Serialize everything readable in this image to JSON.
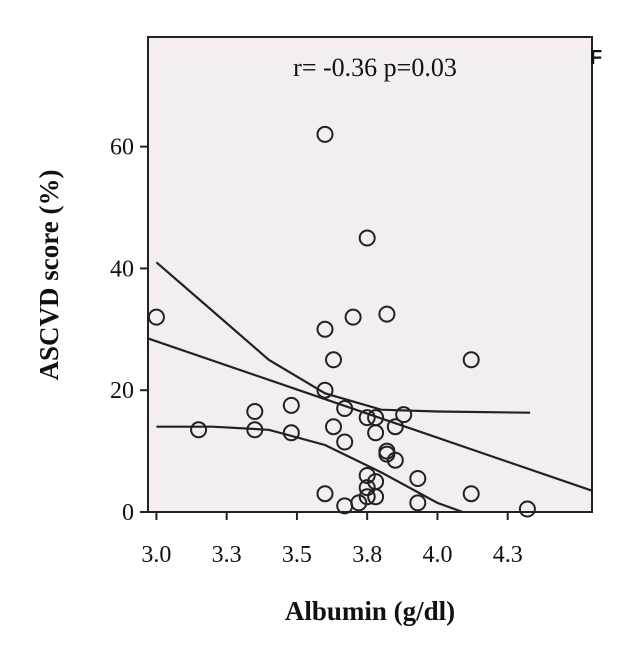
{
  "chart_data": {
    "type": "scatter",
    "panel_label": "F",
    "annotation": "r= -0.36 p=0.03",
    "xlabel": "Albumin (g/dl)",
    "ylabel": "ASCVD score (%)",
    "xlim": [
      2.97,
      4.55
    ],
    "ylim": [
      0,
      78
    ],
    "xticks": [
      "3.0",
      "3.3",
      "3.5",
      "3.8",
      "4.0",
      "4.3"
    ],
    "xtick_values": [
      3.0,
      3.25,
      3.5,
      3.75,
      4.0,
      4.25
    ],
    "yticks": [
      "0",
      "20",
      "40",
      "60"
    ],
    "ytick_values": [
      0,
      20,
      40,
      60
    ],
    "grid": false,
    "colors": {
      "background": "#f4eef0",
      "marker": "#222222",
      "line": "#222222"
    },
    "points": [
      [
        3.0,
        32
      ],
      [
        3.15,
        13.5
      ],
      [
        3.35,
        16.5
      ],
      [
        3.35,
        13.5
      ],
      [
        3.48,
        17.5
      ],
      [
        3.48,
        13
      ],
      [
        3.6,
        62
      ],
      [
        3.6,
        30
      ],
      [
        3.6,
        20
      ],
      [
        3.6,
        3
      ],
      [
        3.63,
        25
      ],
      [
        3.63,
        14
      ],
      [
        3.67,
        17
      ],
      [
        3.67,
        11.5
      ],
      [
        3.67,
        1
      ],
      [
        3.7,
        32
      ],
      [
        3.72,
        1.5
      ],
      [
        3.75,
        45
      ],
      [
        3.75,
        15.5
      ],
      [
        3.75,
        6
      ],
      [
        3.75,
        4
      ],
      [
        3.75,
        2.5
      ],
      [
        3.78,
        15.5
      ],
      [
        3.78,
        13
      ],
      [
        3.78,
        5
      ],
      [
        3.78,
        2.5
      ],
      [
        3.82,
        32.5
      ],
      [
        3.82,
        10
      ],
      [
        3.82,
        9.5
      ],
      [
        3.85,
        14
      ],
      [
        3.85,
        8.5
      ],
      [
        3.88,
        16
      ],
      [
        3.93,
        5.5
      ],
      [
        3.93,
        1.5
      ],
      [
        4.12,
        25
      ],
      [
        4.12,
        3
      ],
      [
        4.32,
        0.5
      ]
    ],
    "fit_line": [
      [
        2.97,
        28.5
      ],
      [
        4.55,
        3.5
      ]
    ],
    "upper_ci": [
      [
        3.0,
        41
      ],
      [
        3.2,
        33
      ],
      [
        3.4,
        25
      ],
      [
        3.6,
        19.5
      ],
      [
        3.8,
        16.8
      ],
      [
        4.0,
        16.5
      ],
      [
        4.33,
        16.3
      ]
    ],
    "lower_ci": [
      [
        3.0,
        14
      ],
      [
        3.2,
        14
      ],
      [
        3.4,
        13.5
      ],
      [
        3.6,
        11
      ],
      [
        3.8,
        6.5
      ],
      [
        4.0,
        1.5
      ],
      [
        4.15,
        -1
      ]
    ]
  }
}
